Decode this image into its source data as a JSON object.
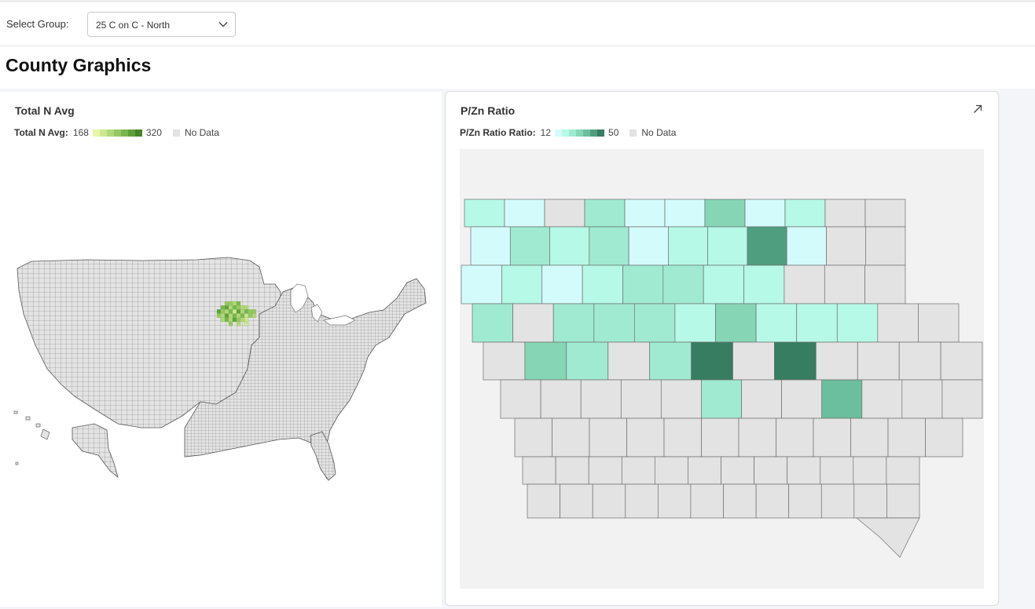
{
  "toolbar": {
    "select_label": "Select Group:",
    "selected_group": "25 C on C - North"
  },
  "page_title": "County Graphics",
  "left_card": {
    "title": "Total N Avg",
    "legend": {
      "name": "Total N Avg:",
      "min": "168",
      "max": "320",
      "no_data": "No Data",
      "colors": [
        "#e6f5a8",
        "#cbe891",
        "#b0d879",
        "#95c863",
        "#7ab64e",
        "#5f9f3b",
        "#48862b"
      ]
    },
    "no_data_color": "#e3e3e3"
  },
  "right_card": {
    "title": "P/Zn Ratio",
    "expand_icon": "expand-arrow-icon",
    "legend": {
      "name": "P/Zn Ratio Ratio:",
      "min": "12",
      "max": "50",
      "no_data": "No Data",
      "colors": [
        "#d4fbfb",
        "#b5f9e6",
        "#a0ead2",
        "#86d6b5",
        "#6bbf9e",
        "#509e80",
        "#367d62"
      ]
    }
  },
  "map_data": {
    "region": "Iowa counties",
    "levels": [
      [
        1,
        0,
        -1,
        2,
        0,
        0,
        3,
        0,
        1,
        -1,
        -1
      ],
      [
        0,
        2,
        1,
        2,
        0,
        1,
        1,
        5,
        0,
        -1,
        -1
      ],
      [
        0,
        1,
        0,
        1,
        2,
        2,
        1,
        1,
        -1,
        -1,
        -1
      ],
      [
        2,
        -1,
        2,
        2,
        2,
        1,
        3,
        1,
        1,
        1,
        -1,
        -1
      ],
      [
        -1,
        3,
        2,
        -1,
        2,
        6,
        -1,
        6,
        -1,
        -1,
        -1,
        -1
      ],
      [
        -1,
        -1,
        -1,
        -1,
        -1,
        2,
        -1,
        -1,
        4,
        -1,
        -1,
        -1
      ],
      [
        -1,
        -1,
        -1,
        -1,
        -1,
        -1,
        -1,
        -1,
        -1,
        -1,
        -1,
        -1
      ],
      [
        -1,
        -1,
        -1,
        -1,
        -1,
        -1,
        -1,
        -1,
        -1,
        -1,
        -1,
        -1
      ],
      [
        -1,
        -1,
        -1,
        -1,
        -1,
        -1,
        -1,
        -1,
        -1,
        -1,
        -1,
        -1
      ]
    ]
  }
}
